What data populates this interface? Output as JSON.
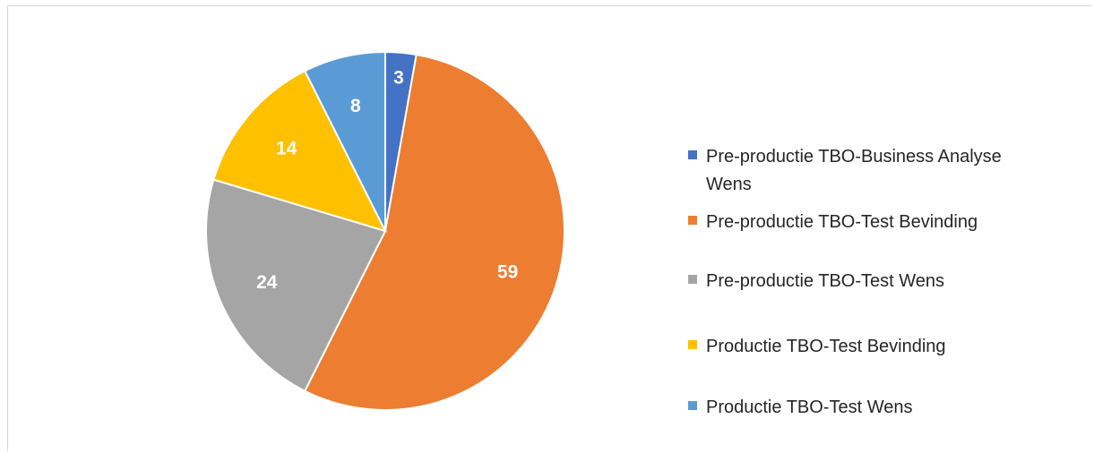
{
  "chart_data": {
    "type": "pie",
    "title": "",
    "slices": [
      {
        "label": "Pre-productie TBO-Business Analyse Wens",
        "value": 3,
        "color": "#4472C4"
      },
      {
        "label": "Pre-productie TBO-Test Bevinding",
        "value": 59,
        "color": "#ED7D31"
      },
      {
        "label": "Pre-productie TBO-Test Wens",
        "value": 24,
        "color": "#A5A5A5"
      },
      {
        "label": "Productie TBO-Test Bevinding",
        "value": 14,
        "color": "#FFC000"
      },
      {
        "label": "Productie TBO-Test Wens",
        "value": 8,
        "color": "#5B9BD5"
      }
    ],
    "legend_position": "right"
  }
}
